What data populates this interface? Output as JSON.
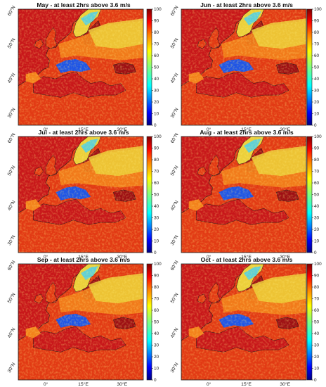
{
  "figure": {
    "panels": [
      {
        "title": "May - at least 2hrs above 3.6 m/s",
        "lon_labels": [
          "0°",
          "15°E",
          "30°E"
        ],
        "lat_labels": [
          "60°N",
          "50°N",
          "40°N",
          "30°N"
        ]
      },
      {
        "title": "Jun - at least 2hrs above 3.6 m/s",
        "lon_labels": [
          "0°",
          "15°E",
          "30°E"
        ],
        "lat_labels": [
          "60°N",
          "50°N",
          "40°N",
          "30°N"
        ]
      },
      {
        "title": "Jul - at least 2hrs above 3.6 m/s",
        "lon_labels": [
          "0°",
          "15°E",
          "30°E"
        ],
        "lat_labels": [
          "60°N",
          "50°N",
          "40°N",
          "30°N"
        ]
      },
      {
        "title": "Aug - at least 2hrs above 3.6 m/s",
        "lon_labels": [
          "0°",
          "15°E",
          "30°E"
        ],
        "lat_labels": [
          "60°N",
          "50°N",
          "40°N",
          "30°N"
        ]
      },
      {
        "title": "Sep - at least 2hrs above 3.6 m/s",
        "lon_labels": [
          "0°",
          "15°E",
          "30°E"
        ],
        "lat_labels": [
          "60°N",
          "50°N",
          "40°N",
          "30°N"
        ]
      },
      {
        "title": "Oct - at least 2hrs above 3.6 m/s",
        "lon_labels": [
          "0°",
          "15°E",
          "30°E"
        ],
        "lat_labels": [
          "60°N",
          "50°N",
          "40°N",
          "30°N"
        ]
      }
    ],
    "colorbar": {
      "ticks": [
        "0",
        "10",
        "20",
        "30",
        "40",
        "50",
        "60",
        "70",
        "80",
        "90",
        "100"
      ],
      "colormap": "jet",
      "colors": [
        "#00007f",
        "#0000ff",
        "#007fff",
        "#00ffff",
        "#7fff7f",
        "#ffff00",
        "#ff7f00",
        "#ff0000",
        "#7f0000"
      ]
    },
    "map_colors": {
      "sea": "#c8171a",
      "sea_dark": "#9e1014",
      "land": "#e23a14",
      "land_orange": "#f3821b",
      "land_yellow": "#ecd03a",
      "land_cyan": "#5fd0d6",
      "land_blue": "#1f55e6",
      "coast": "#1a1a1a",
      "frame": "#222222"
    }
  }
}
